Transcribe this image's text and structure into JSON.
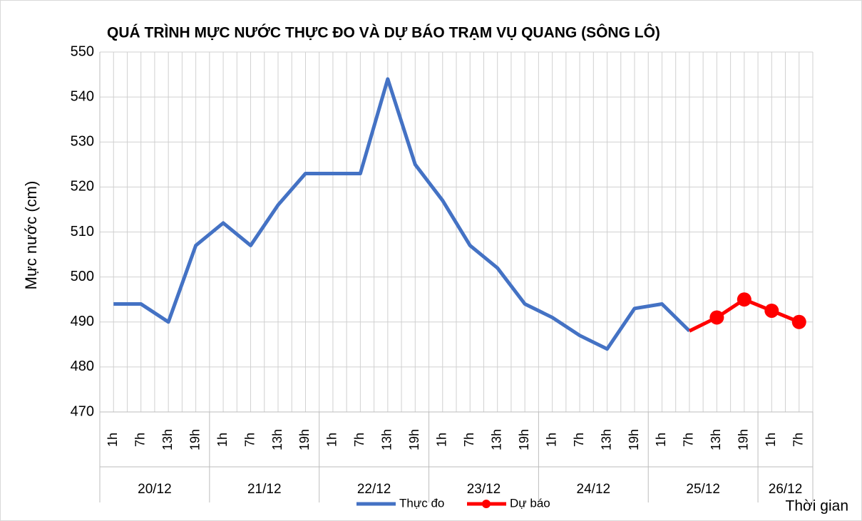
{
  "chart_data": {
    "type": "line",
    "title": "QUÁ TRÌNH MỰC NƯỚC THỰC ĐO VÀ DỰ BÁO TRẠM VỤ QUANG (SÔNG LÔ)",
    "y_label": "Mực nước (cm)",
    "x_label": "Thời gian",
    "categories": [
      "1h",
      "7h",
      "13h",
      "19h",
      "1h",
      "7h",
      "13h",
      "19h",
      "1h",
      "7h",
      "13h",
      "19h",
      "1h",
      "7h",
      "13h",
      "19h",
      "1h",
      "7h",
      "13h",
      "19h",
      "1h",
      "7h",
      "13h",
      "19h",
      "1h",
      "7h"
    ],
    "groups": [
      {
        "label": "20/12",
        "count": 4
      },
      {
        "label": "21/12",
        "count": 4
      },
      {
        "label": "22/12",
        "count": 4
      },
      {
        "label": "23/12",
        "count": 4
      },
      {
        "label": "24/12",
        "count": 4
      },
      {
        "label": "25/12",
        "count": 4
      },
      {
        "label": "26/12",
        "count": 2
      }
    ],
    "series": [
      {
        "name": "Thực đo",
        "color": "#4472c4",
        "markers": false,
        "values": [
          494,
          494,
          490,
          507,
          512,
          507,
          516,
          523,
          523,
          523,
          544,
          525,
          517,
          507,
          502,
          494,
          491,
          487,
          484,
          493,
          494,
          488,
          null,
          null,
          null,
          null
        ]
      },
      {
        "name": "Dự báo",
        "color": "#ff0000",
        "markers": true,
        "values": [
          null,
          null,
          null,
          null,
          null,
          null,
          null,
          null,
          null,
          null,
          null,
          null,
          null,
          null,
          null,
          null,
          null,
          null,
          null,
          null,
          null,
          488,
          491,
          495,
          492.5,
          490
        ]
      }
    ],
    "ylim": [
      470,
      550
    ],
    "yticks": [
      470,
      480,
      490,
      500,
      510,
      520,
      530,
      540,
      550
    ],
    "grid": true
  }
}
